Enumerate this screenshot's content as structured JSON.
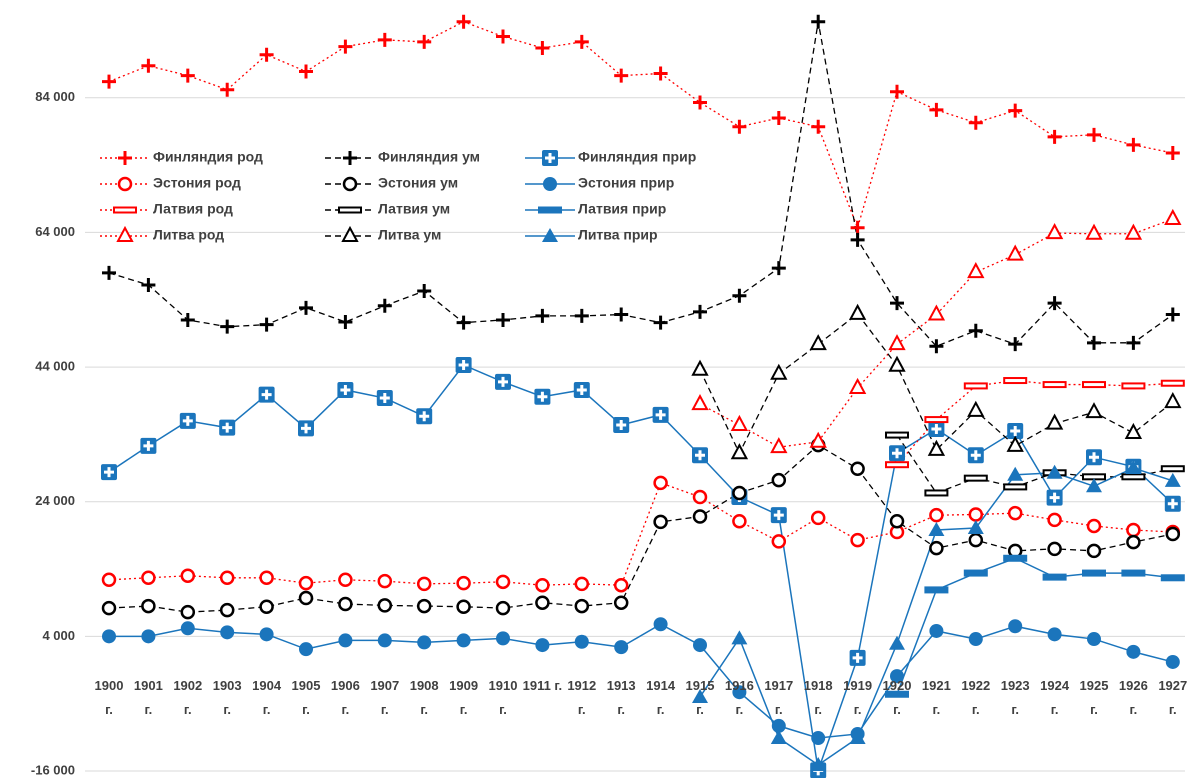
{
  "chart_data": {
    "type": "line",
    "categories": [
      "1900 г.",
      "1901 г.",
      "1902 г.",
      "1903 г.",
      "1904 г.",
      "1905 г.",
      "1906 г.",
      "1907 г.",
      "1908 г.",
      "1909 г.",
      "1910 г.",
      "1911 г.",
      "1912 г.",
      "1913 г.",
      "1914 г.",
      "1915 г.",
      "1916 г.",
      "1917 г.",
      "1918 г.",
      "1919 г.",
      "1920 г.",
      "1921 г.",
      "1922 г.",
      "1923 г.",
      "1924 г.",
      "1925 г.",
      "1926 г.",
      "1927 г."
    ],
    "ylim": [
      -16000,
      96000
    ],
    "yticks": [
      {
        "value": -16000,
        "label": "-16 000"
      },
      {
        "value": 4000,
        "label": "4 000"
      },
      {
        "value": 24000,
        "label": "24 000"
      },
      {
        "value": 44000,
        "label": "44 000"
      },
      {
        "value": 64000,
        "label": "64 000"
      },
      {
        "value": 84000,
        "label": "84 000"
      }
    ],
    "grid": true,
    "series": [
      {
        "name": "Финляндия род",
        "color": "#ff0000",
        "line_style": "dotted",
        "marker": "plus",
        "values": [
          86400,
          88750,
          87300,
          85200,
          90400,
          87900,
          91600,
          92600,
          92300,
          95300,
          93100,
          91400,
          92300,
          87300,
          87600,
          83300,
          79700,
          81000,
          79700,
          64700,
          84900,
          82200,
          80300,
          82100,
          78200,
          78500,
          77000,
          75800
        ]
      },
      {
        "name": "Финляндия ум",
        "color": "#000000",
        "line_style": "dashed",
        "marker": "plus",
        "values": [
          58000,
          56200,
          51000,
          50000,
          50300,
          52800,
          50700,
          53100,
          55300,
          50600,
          51000,
          51600,
          51600,
          51800,
          50600,
          52200,
          54600,
          58700,
          95300,
          62900,
          53500,
          47100,
          49400,
          47400,
          53500,
          47600,
          47600,
          51800
        ]
      },
      {
        "name": "Финляндия прир",
        "color": "#1b75bc",
        "line_style": "solid",
        "marker": "plus-square",
        "values": [
          28400,
          32300,
          36000,
          35000,
          39900,
          34900,
          40600,
          39400,
          36700,
          44300,
          41800,
          39600,
          40600,
          35400,
          36900,
          30900,
          24700,
          22000,
          -15900,
          800,
          31200,
          34800,
          30900,
          34500,
          24600,
          30600,
          29200,
          23700
        ]
      },
      {
        "name": "Эстония род",
        "color": "#ff0000",
        "line_style": "dotted",
        "marker": "circle-open",
        "values": [
          12400,
          12700,
          13000,
          12700,
          12700,
          11900,
          12400,
          12200,
          11800,
          11900,
          12100,
          11600,
          11800,
          11600,
          26800,
          24700,
          21100,
          18100,
          21600,
          18300,
          19500,
          22000,
          22100,
          22300,
          21300,
          20400,
          19800,
          19500
        ]
      },
      {
        "name": "Эстония ум",
        "color": "#000000",
        "line_style": "dashed",
        "marker": "circle-open",
        "values": [
          8200,
          8500,
          7600,
          7900,
          8400,
          9700,
          8800,
          8600,
          8500,
          8400,
          8200,
          9000,
          8500,
          9000,
          21000,
          21800,
          25300,
          27200,
          32400,
          28900,
          21100,
          17100,
          18300,
          16700,
          17000,
          16700,
          18000,
          19200
        ]
      },
      {
        "name": "Эстония прир",
        "color": "#1b75bc",
        "line_style": "solid",
        "marker": "circle-filled",
        "values": [
          4000,
          4000,
          5200,
          4600,
          4300,
          2100,
          3400,
          3400,
          3100,
          3400,
          3700,
          2700,
          3200,
          2400,
          5800,
          2700,
          -4300,
          -9300,
          -11100,
          -10500,
          -1900,
          4800,
          3600,
          5500,
          4300,
          3600,
          1700,
          200
        ]
      },
      {
        "name": "Латвия род",
        "color": "#ff0000",
        "line_style": "dotted",
        "marker": "dash",
        "values": [
          null,
          null,
          null,
          null,
          null,
          null,
          null,
          null,
          null,
          null,
          null,
          null,
          null,
          null,
          null,
          null,
          null,
          null,
          null,
          null,
          29500,
          36200,
          41200,
          42000,
          41400,
          41400,
          41200,
          41600
        ]
      },
      {
        "name": "Латвия ум",
        "color": "#000000",
        "line_style": "dashed",
        "marker": "dash",
        "values": [
          null,
          null,
          null,
          null,
          null,
          null,
          null,
          null,
          null,
          null,
          null,
          null,
          null,
          null,
          null,
          null,
          null,
          null,
          null,
          null,
          33900,
          25300,
          27500,
          26200,
          28300,
          27700,
          27700,
          28900
        ]
      },
      {
        "name": "Латвия прир",
        "color": "#1b75bc",
        "line_style": "solid",
        "marker": "dash",
        "values": [
          null,
          null,
          null,
          null,
          null,
          null,
          null,
          null,
          null,
          null,
          null,
          null,
          null,
          null,
          null,
          null,
          null,
          null,
          null,
          null,
          -4600,
          10900,
          13400,
          15600,
          12800,
          13400,
          13400,
          12700
        ]
      },
      {
        "name": "Литва род",
        "color": "#ff0000",
        "line_style": "dotted",
        "marker": "triangle-open",
        "values": [
          null,
          null,
          null,
          null,
          null,
          null,
          null,
          null,
          null,
          null,
          null,
          null,
          null,
          null,
          null,
          38500,
          35400,
          32100,
          32900,
          40900,
          47400,
          51800,
          58100,
          60700,
          63900,
          63800,
          63800,
          66000
        ]
      },
      {
        "name": "Литва ум",
        "color": "#000000",
        "line_style": "dashed",
        "marker": "triangle-open",
        "values": [
          null,
          null,
          null,
          null,
          null,
          null,
          null,
          null,
          null,
          null,
          null,
          null,
          null,
          null,
          null,
          43600,
          31200,
          43000,
          47400,
          51900,
          44200,
          31700,
          37500,
          32300,
          35600,
          37300,
          34200,
          38800
        ]
      },
      {
        "name": "Литва прир",
        "color": "#1b75bc",
        "line_style": "solid",
        "marker": "triangle-filled",
        "values": [
          null,
          null,
          null,
          null,
          null,
          null,
          null,
          null,
          null,
          null,
          null,
          null,
          null,
          null,
          null,
          -5000,
          3700,
          -11100,
          -15100,
          -11100,
          2900,
          19800,
          20100,
          28000,
          28300,
          26300,
          29000,
          27100
        ]
      }
    ]
  }
}
